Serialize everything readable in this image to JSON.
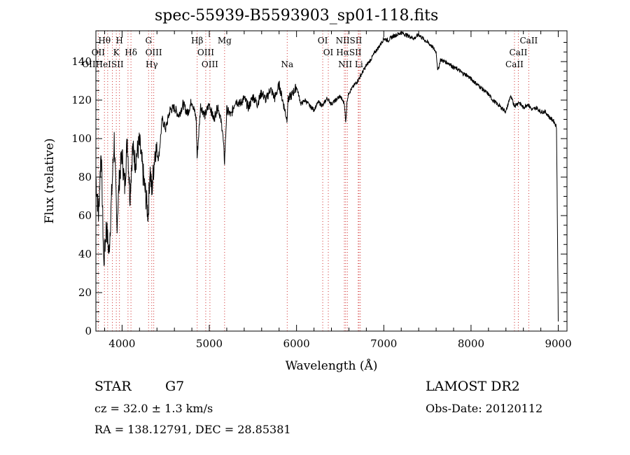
{
  "chart_data": {
    "type": "line",
    "title": "spec-55939-B5593903_sp01-118.fits",
    "xlabel": "Wavelength (Å)",
    "ylabel": "Flux (relative)",
    "xlim": [
      3700,
      9100
    ],
    "ylim": [
      0,
      156
    ],
    "x_ticks": [
      4000,
      5000,
      6000,
      7000,
      8000,
      9000
    ],
    "y_ticks": [
      0,
      20,
      40,
      60,
      80,
      100,
      120,
      140
    ],
    "series": [
      {
        "x": [
          3700,
          3730,
          3760,
          3790,
          3820,
          3850,
          3880,
          3910,
          3940,
          3970,
          4000,
          4030,
          4060,
          4090,
          4120,
          4150,
          4200,
          4250,
          4300,
          4320,
          4340,
          4380,
          4420,
          4460,
          4500,
          4550,
          4600,
          4650,
          4700,
          4750,
          4800,
          4850,
          4860,
          4900,
          4950,
          5000,
          5050,
          5100,
          5150,
          5175,
          5200,
          5250,
          5300,
          5350,
          5400,
          5450,
          5500,
          5550,
          5600,
          5650,
          5700,
          5750,
          5800,
          5850,
          5890,
          5900,
          5950,
          6000,
          6050,
          6100,
          6150,
          6200,
          6250,
          6300,
          6350,
          6400,
          6450,
          6500,
          6550,
          6563,
          6580,
          6600,
          6650,
          6700,
          6750,
          6800,
          6850,
          6900,
          6950,
          7000,
          7050,
          7100,
          7150,
          7200,
          7250,
          7300,
          7350,
          7400,
          7450,
          7500,
          7550,
          7600,
          7620,
          7650,
          7700,
          7750,
          7800,
          7850,
          7900,
          7950,
          8000,
          8050,
          8100,
          8150,
          8200,
          8250,
          8300,
          8350,
          8400,
          8450,
          8500,
          8550,
          8600,
          8650,
          8700,
          8750,
          8800,
          8850,
          8900,
          8950,
          8980,
          9000
        ],
        "y": [
          80,
          60,
          95,
          35,
          55,
          40,
          70,
          100,
          55,
          80,
          92,
          75,
          100,
          70,
          95,
          88,
          98,
          78,
          60,
          85,
          72,
          95,
          90,
          110,
          105,
          115,
          116,
          112,
          118,
          113,
          120,
          110,
          90,
          117,
          112,
          118,
          110,
          117,
          105,
          88,
          115,
          112,
          120,
          118,
          121,
          116,
          122,
          118,
          124,
          120,
          126,
          121,
          128,
          118,
          110,
          120,
          123,
          127,
          118,
          120,
          117,
          115,
          119,
          117,
          121,
          118,
          120,
          122,
          118,
          108,
          120,
          124,
          127,
          130,
          134,
          138,
          141,
          145,
          148,
          152,
          151,
          153,
          154,
          155,
          154,
          153,
          152,
          154,
          152,
          150,
          148,
          145,
          135,
          141,
          140,
          139,
          137,
          136,
          134,
          133,
          131,
          129,
          127,
          125,
          123,
          120,
          118,
          116,
          114,
          122,
          117,
          119,
          116,
          118,
          115,
          116,
          114,
          114,
          111,
          109,
          106,
          5
        ]
      }
    ],
    "line_labels": [
      {
        "text": "Hθ",
        "x": 3798,
        "row": 1
      },
      {
        "text": "H",
        "x": 3970,
        "row": 1
      },
      {
        "text": "G",
        "x": 4304,
        "row": 1
      },
      {
        "text": "Hβ",
        "x": 4861,
        "row": 1
      },
      {
        "text": "Mg",
        "x": 5175,
        "row": 1
      },
      {
        "text": "OI",
        "x": 6300,
        "row": 1
      },
      {
        "text": "NIISII",
        "x": 6600,
        "row": 1
      },
      {
        "text": "CaII",
        "x": 8662,
        "row": 1
      },
      {
        "text": "OII",
        "x": 3727,
        "row": 2
      },
      {
        "text": "K",
        "x": 3934,
        "row": 2
      },
      {
        "text": "Hδ",
        "x": 4102,
        "row": 2
      },
      {
        "text": "OIII",
        "x": 4363,
        "row": 2
      },
      {
        "text": "OIII",
        "x": 4959,
        "row": 2
      },
      {
        "text": "OI",
        "x": 6364,
        "row": 2
      },
      {
        "text": "HαSII",
        "x": 6600,
        "row": 2
      },
      {
        "text": "CaII",
        "x": 8542,
        "row": 2
      },
      {
        "text": "OIIHeISII",
        "x": 3780,
        "row": 3
      },
      {
        "text": "Hγ",
        "x": 4340,
        "row": 3
      },
      {
        "text": "OIII",
        "x": 5007,
        "row": 3
      },
      {
        "text": "Na",
        "x": 5893,
        "row": 3
      },
      {
        "text": "NII Li",
        "x": 6620,
        "row": 3
      },
      {
        "text": "CaII",
        "x": 8498,
        "row": 3
      }
    ],
    "line_markers_x": [
      3727,
      3798,
      3835,
      3889,
      3934,
      3970,
      4068,
      4102,
      4304,
      4340,
      4363,
      4861,
      4959,
      5007,
      5175,
      5893,
      6300,
      6364,
      6548,
      6563,
      6583,
      6707,
      6716,
      6731,
      8498,
      8542,
      8662
    ],
    "colors": {
      "line": "#000000",
      "markers": "#d03030"
    }
  },
  "info": {
    "class": "STAR",
    "subclass": "G7",
    "survey": "LAMOST DR2",
    "cz": "cz = 32.0 ± 1.3 km/s",
    "obs_date": "Obs-Date: 20120112",
    "radec": "RA = 138.12791, DEC =  28.85381"
  }
}
